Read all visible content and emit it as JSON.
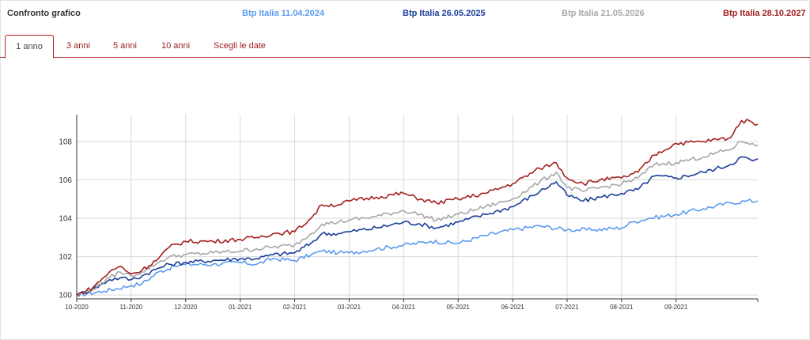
{
  "header": {
    "title": "Confronto grafico",
    "legend": [
      {
        "label": "Btp Italia 11.04.2024",
        "color": "#5b9bf0"
      },
      {
        "label": "Btp Italia 26.05.2025",
        "color": "#1d3f9a"
      },
      {
        "label": "Btp Italia 21.05.2026",
        "color": "#a8a8a8"
      },
      {
        "label": "Btp Italia 28.10.2027",
        "color": "#a32020"
      }
    ]
  },
  "tabs": [
    {
      "label": "1 anno",
      "active": true
    },
    {
      "label": "3 anni",
      "active": false
    },
    {
      "label": "5 anni",
      "active": false
    },
    {
      "label": "10 anni",
      "active": false
    },
    {
      "label": "Scegli le date",
      "active": false
    }
  ],
  "chart_data": {
    "type": "line",
    "x_ticks": [
      "10-2020",
      "11-2020",
      "12-2020",
      "01-2021",
      "02-2021",
      "03-2021",
      "04-2021",
      "05-2021",
      "06-2021",
      "07-2021",
      "08-2021",
      "09-2021"
    ],
    "y_ticks": [
      100,
      102,
      104,
      106,
      108
    ],
    "ylim": [
      99.8,
      109.4
    ],
    "grid": true,
    "series": [
      {
        "name": "Btp Italia 11.04.2024",
        "color": "#5b9bf0",
        "points": [
          [
            0,
            100.0
          ],
          [
            0.5,
            100.2
          ],
          [
            1,
            100.5
          ],
          [
            1.2,
            100.6
          ],
          [
            1.5,
            101.2
          ],
          [
            1.8,
            101.5
          ],
          [
            2,
            101.6
          ],
          [
            2.5,
            101.6
          ],
          [
            3,
            101.7
          ],
          [
            3.3,
            101.6
          ],
          [
            3.6,
            101.9
          ],
          [
            4,
            101.8
          ],
          [
            4.3,
            102.1
          ],
          [
            4.5,
            102.3
          ],
          [
            4.8,
            102.2
          ],
          [
            5,
            102.2
          ],
          [
            5.5,
            102.4
          ],
          [
            6,
            102.6
          ],
          [
            6.5,
            102.8
          ],
          [
            7,
            102.7
          ],
          [
            7.5,
            103.1
          ],
          [
            8,
            103.4
          ],
          [
            8.5,
            103.6
          ],
          [
            9,
            103.4
          ],
          [
            9.5,
            103.4
          ],
          [
            10,
            103.5
          ],
          [
            10.2,
            103.8
          ],
          [
            10.5,
            104.0
          ],
          [
            11,
            104.2
          ],
          [
            11.5,
            104.5
          ],
          [
            12,
            104.8
          ],
          [
            12.3,
            104.9
          ],
          [
            12.5,
            104.9
          ]
        ]
      },
      {
        "name": "Btp Italia 26.05.2025",
        "color": "#1d3f9a",
        "points": [
          [
            0,
            100.0
          ],
          [
            0.3,
            100.3
          ],
          [
            0.6,
            100.8
          ],
          [
            0.8,
            100.9
          ],
          [
            1,
            100.8
          ],
          [
            1.2,
            101.0
          ],
          [
            1.5,
            101.4
          ],
          [
            1.7,
            101.6
          ],
          [
            2,
            101.7
          ],
          [
            2.5,
            101.8
          ],
          [
            3,
            101.9
          ],
          [
            3.3,
            101.9
          ],
          [
            3.6,
            102.1
          ],
          [
            4,
            102.2
          ],
          [
            4.3,
            102.7
          ],
          [
            4.5,
            103.2
          ],
          [
            4.8,
            103.2
          ],
          [
            5,
            103.3
          ],
          [
            5.5,
            103.5
          ],
          [
            6,
            103.8
          ],
          [
            6.3,
            103.7
          ],
          [
            6.6,
            103.5
          ],
          [
            7,
            103.8
          ],
          [
            7.5,
            104.2
          ],
          [
            8,
            104.6
          ],
          [
            8.5,
            105.4
          ],
          [
            8.8,
            105.9
          ],
          [
            9,
            105.2
          ],
          [
            9.3,
            104.9
          ],
          [
            9.6,
            105.1
          ],
          [
            10,
            105.3
          ],
          [
            10.3,
            105.5
          ],
          [
            10.6,
            106.2
          ],
          [
            11,
            106.1
          ],
          [
            11.5,
            106.4
          ],
          [
            12,
            106.8
          ],
          [
            12.2,
            107.2
          ],
          [
            12.4,
            107.0
          ],
          [
            12.5,
            107.1
          ]
        ]
      },
      {
        "name": "Btp Italia 21.05.2026",
        "color": "#a8a8a8",
        "points": [
          [
            0,
            100.0
          ],
          [
            0.3,
            100.3
          ],
          [
            0.6,
            100.9
          ],
          [
            0.8,
            101.2
          ],
          [
            1,
            101.0
          ],
          [
            1.2,
            101.2
          ],
          [
            1.5,
            101.7
          ],
          [
            1.7,
            102.0
          ],
          [
            2,
            102.1
          ],
          [
            2.5,
            102.2
          ],
          [
            3,
            102.3
          ],
          [
            3.3,
            102.4
          ],
          [
            3.6,
            102.5
          ],
          [
            4,
            102.6
          ],
          [
            4.3,
            103.2
          ],
          [
            4.5,
            103.7
          ],
          [
            4.8,
            103.8
          ],
          [
            5,
            103.9
          ],
          [
            5.5,
            104.1
          ],
          [
            6,
            104.4
          ],
          [
            6.3,
            104.2
          ],
          [
            6.6,
            103.9
          ],
          [
            7,
            104.2
          ],
          [
            7.5,
            104.6
          ],
          [
            8,
            105.0
          ],
          [
            8.5,
            105.9
          ],
          [
            8.8,
            106.4
          ],
          [
            9,
            105.6
          ],
          [
            9.3,
            105.4
          ],
          [
            9.6,
            105.6
          ],
          [
            10,
            105.8
          ],
          [
            10.3,
            106.1
          ],
          [
            10.6,
            106.8
          ],
          [
            11,
            106.9
          ],
          [
            11.5,
            107.2
          ],
          [
            12,
            107.6
          ],
          [
            12.2,
            108.0
          ],
          [
            12.4,
            107.9
          ],
          [
            12.5,
            107.8
          ]
        ]
      },
      {
        "name": "Btp Italia 28.10.2027",
        "color": "#a32020",
        "points": [
          [
            0,
            100.0
          ],
          [
            0.3,
            100.4
          ],
          [
            0.6,
            101.2
          ],
          [
            0.8,
            101.5
          ],
          [
            1,
            101.1
          ],
          [
            1.2,
            101.3
          ],
          [
            1.5,
            101.9
          ],
          [
            1.7,
            102.5
          ],
          [
            2,
            102.8
          ],
          [
            2.5,
            102.8
          ],
          [
            3,
            102.9
          ],
          [
            3.3,
            103.0
          ],
          [
            3.6,
            103.2
          ],
          [
            4,
            103.3
          ],
          [
            4.3,
            104.0
          ],
          [
            4.5,
            104.7
          ],
          [
            4.8,
            104.7
          ],
          [
            5,
            104.9
          ],
          [
            5.5,
            105.1
          ],
          [
            6,
            105.3
          ],
          [
            6.3,
            105.0
          ],
          [
            6.6,
            104.8
          ],
          [
            7,
            105.0
          ],
          [
            7.5,
            105.3
          ],
          [
            8,
            105.8
          ],
          [
            8.5,
            106.6
          ],
          [
            8.8,
            106.9
          ],
          [
            9,
            106.1
          ],
          [
            9.3,
            105.8
          ],
          [
            9.6,
            106.0
          ],
          [
            10,
            106.1
          ],
          [
            10.3,
            106.4
          ],
          [
            10.6,
            107.3
          ],
          [
            11,
            107.9
          ],
          [
            11.5,
            108.0
          ],
          [
            12,
            108.2
          ],
          [
            12.2,
            109.1
          ],
          [
            12.4,
            109.0
          ],
          [
            12.5,
            108.9
          ]
        ]
      }
    ]
  }
}
